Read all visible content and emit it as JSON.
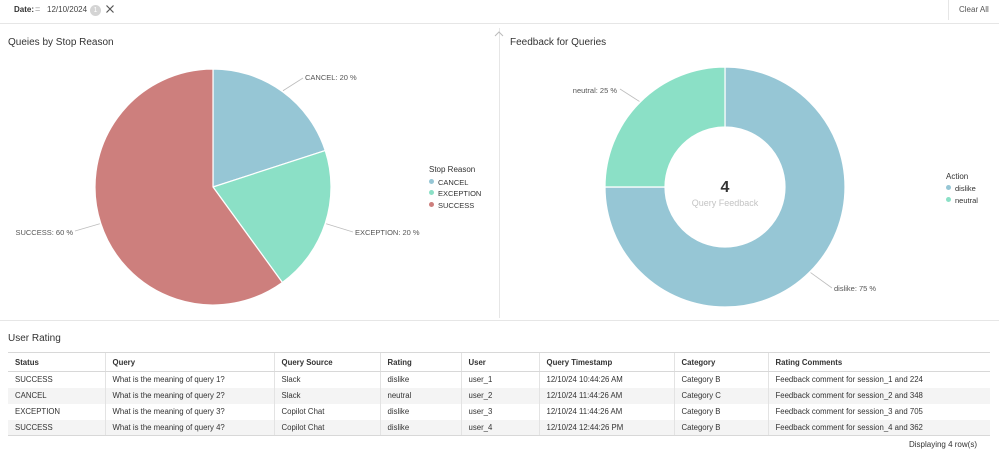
{
  "filter": {
    "label": "Date:",
    "operator": "=",
    "value": "12/10/2024",
    "count": "1",
    "clear_all": "Clear All"
  },
  "left_panel": {
    "title": "Queies by Stop Reason",
    "legend_title": "Stop Reason",
    "legend": [
      "CANCEL",
      "EXCEPTION",
      "SUCCESS"
    ]
  },
  "right_panel": {
    "title": "Feedback for Queries",
    "legend_title": "Action",
    "legend": [
      "dislike",
      "neutral"
    ],
    "center_value": "4",
    "center_label": "Query Feedback"
  },
  "chart_data": [
    {
      "type": "pie",
      "title": "Queies by Stop Reason",
      "legend_title": "Stop Reason",
      "slices": [
        {
          "name": "CANCEL",
          "value": 20,
          "label": "CANCEL: 20 %",
          "color": "#96c6d5"
        },
        {
          "name": "EXCEPTION",
          "value": 20,
          "label": "EXCEPTION: 20 %",
          "color": "#8be0c6"
        },
        {
          "name": "SUCCESS",
          "value": 60,
          "label": "SUCCESS: 60 %",
          "color": "#cd7f7d"
        }
      ]
    },
    {
      "type": "pie",
      "donut": true,
      "title": "Feedback for Queries",
      "legend_title": "Action",
      "center_value": "4",
      "center_label": "Query Feedback",
      "slices": [
        {
          "name": "dislike",
          "value": 75,
          "label": "dislike: 75 %",
          "color": "#96c6d5"
        },
        {
          "name": "neutral",
          "value": 25,
          "label": "neutral: 25 %",
          "color": "#8be0c6"
        }
      ]
    }
  ],
  "table": {
    "title": "User Rating",
    "columns": [
      "Status",
      "Query",
      "Query Source",
      "Rating",
      "User",
      "Query Timestamp",
      "Category",
      "Rating Comments"
    ],
    "rows": [
      [
        "SUCCESS",
        "What is the meaning of query 1?",
        "Slack",
        "dislike",
        "user_1",
        "12/10/24 10:44:26 AM",
        "Category B",
        "Feedback comment for session_1 and 224"
      ],
      [
        "CANCEL",
        "What is the meaning of query 2?",
        "Slack",
        "neutral",
        "user_2",
        "12/10/24 11:44:26 AM",
        "Category C",
        "Feedback comment for session_2 and 348"
      ],
      [
        "EXCEPTION",
        "What is the meaning of query 3?",
        "Copilot Chat",
        "dislike",
        "user_3",
        "12/10/24 11:44:26 AM",
        "Category B",
        "Feedback comment for session_3 and 705"
      ],
      [
        "SUCCESS",
        "What is the meaning of query 4?",
        "Copilot Chat",
        "dislike",
        "user_4",
        "12/10/24 12:44:26 PM",
        "Category B",
        "Feedback comment for session_4 and 362"
      ]
    ],
    "footer": "Displaying 4 row(s)"
  },
  "icons": {
    "filter_close": "close-icon",
    "collapse": "chevron-up-icon"
  }
}
